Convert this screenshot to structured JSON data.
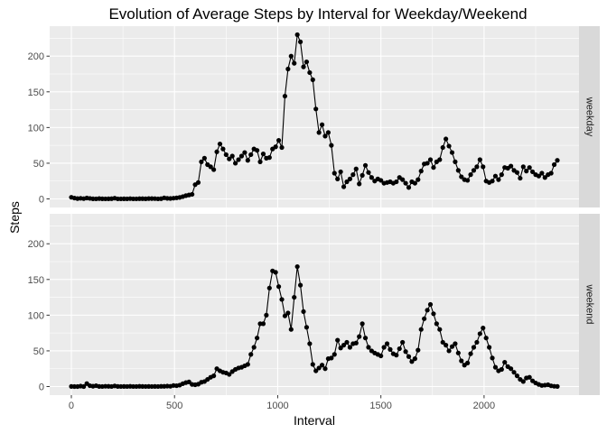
{
  "chart_data": {
    "type": "line",
    "title": "Evolution of Average Steps by Interval for Weekday/Weekend",
    "xlabel": "Interval",
    "ylabel": "Steps",
    "xlim": [
      -105,
      2460
    ],
    "ylim": [
      -12,
      242
    ],
    "x_ticks": [
      0,
      500,
      1000,
      1500,
      2000
    ],
    "y_ticks": [
      0,
      50,
      100,
      150,
      200
    ],
    "grid": true,
    "markers": true,
    "colors": {
      "panel": "#ebebeb",
      "grid": "#ffffff",
      "strip": "#d9d9d9",
      "line": "#000000"
    },
    "panels": [
      {
        "label": "weekday",
        "points": [
          [
            0,
            2.3
          ],
          [
            15,
            1.2
          ],
          [
            30,
            0.5
          ],
          [
            45,
            0.9
          ],
          [
            60,
            0.4
          ],
          [
            75,
            1.3
          ],
          [
            90,
            0.7
          ],
          [
            105,
            0.2
          ],
          [
            120,
            0.1
          ],
          [
            135,
            0.5
          ],
          [
            150,
            0.2
          ],
          [
            165,
            0.1
          ],
          [
            180,
            0.2
          ],
          [
            195,
            0.3
          ],
          [
            210,
            1.0
          ],
          [
            225,
            0.1
          ],
          [
            240,
            0.1
          ],
          [
            255,
            0.2
          ],
          [
            270,
            0.1
          ],
          [
            285,
            0.4
          ],
          [
            300,
            0.1
          ],
          [
            315,
            0.1
          ],
          [
            330,
            0.3
          ],
          [
            345,
            0.3
          ],
          [
            360,
            0.2
          ],
          [
            375,
            0.5
          ],
          [
            390,
            0.5
          ],
          [
            405,
            0.4
          ],
          [
            420,
            0.1
          ],
          [
            435,
            0.3
          ],
          [
            450,
            1.5
          ],
          [
            465,
            0.8
          ],
          [
            480,
            0.6
          ],
          [
            495,
            1.0
          ],
          [
            510,
            1.5
          ],
          [
            525,
            2.1
          ],
          [
            540,
            3.2
          ],
          [
            555,
            4.6
          ],
          [
            570,
            5.5
          ],
          [
            585,
            6.4
          ],
          [
            600,
            20.0
          ],
          [
            615,
            23.0
          ],
          [
            630,
            52.0
          ],
          [
            645,
            57.0
          ],
          [
            660,
            48.0
          ],
          [
            675,
            45.0
          ],
          [
            690,
            41.0
          ],
          [
            705,
            66.0
          ],
          [
            720,
            77.0
          ],
          [
            735,
            70.0
          ],
          [
            750,
            62.0
          ],
          [
            765,
            56.0
          ],
          [
            780,
            60.0
          ],
          [
            795,
            50.0
          ],
          [
            810,
            55.0
          ],
          [
            825,
            60.0
          ],
          [
            840,
            65.0
          ],
          [
            855,
            54.0
          ],
          [
            870,
            62.0
          ],
          [
            885,
            70.0
          ],
          [
            900,
            68.0
          ],
          [
            915,
            52.0
          ],
          [
            930,
            63.0
          ],
          [
            945,
            57.0
          ],
          [
            960,
            58.0
          ],
          [
            975,
            70.0
          ],
          [
            990,
            73.0
          ],
          [
            1005,
            82.0
          ],
          [
            1020,
            72.0
          ],
          [
            1035,
            144.0
          ],
          [
            1050,
            182.0
          ],
          [
            1065,
            200.0
          ],
          [
            1080,
            190.0
          ],
          [
            1095,
            230.0
          ],
          [
            1110,
            220.0
          ],
          [
            1125,
            185.0
          ],
          [
            1140,
            192.0
          ],
          [
            1155,
            177.0
          ],
          [
            1170,
            167.0
          ],
          [
            1185,
            126.0
          ],
          [
            1200,
            93.0
          ],
          [
            1215,
            104.0
          ],
          [
            1230,
            88.0
          ],
          [
            1245,
            93.0
          ],
          [
            1260,
            75.0
          ],
          [
            1275,
            36.0
          ],
          [
            1290,
            28.0
          ],
          [
            1305,
            38.0
          ],
          [
            1320,
            17.0
          ],
          [
            1335,
            24.0
          ],
          [
            1350,
            28.0
          ],
          [
            1365,
            34.0
          ],
          [
            1380,
            42.0
          ],
          [
            1395,
            21.0
          ],
          [
            1410,
            33.0
          ],
          [
            1425,
            47.0
          ],
          [
            1440,
            37.0
          ],
          [
            1455,
            30.0
          ],
          [
            1470,
            25.0
          ],
          [
            1485,
            28.0
          ],
          [
            1500,
            26.0
          ],
          [
            1515,
            22.0
          ],
          [
            1530,
            23.0
          ],
          [
            1545,
            24.0
          ],
          [
            1560,
            22.0
          ],
          [
            1575,
            24.0
          ],
          [
            1590,
            30.0
          ],
          [
            1605,
            27.0
          ],
          [
            1620,
            22.0
          ],
          [
            1635,
            16.0
          ],
          [
            1650,
            24.0
          ],
          [
            1665,
            22.0
          ],
          [
            1680,
            27.0
          ],
          [
            1695,
            39.0
          ],
          [
            1710,
            49.0
          ],
          [
            1725,
            50.0
          ],
          [
            1740,
            55.0
          ],
          [
            1755,
            44.0
          ],
          [
            1770,
            52.0
          ],
          [
            1785,
            55.0
          ],
          [
            1800,
            72.0
          ],
          [
            1815,
            84.0
          ],
          [
            1830,
            74.0
          ],
          [
            1845,
            65.0
          ],
          [
            1860,
            52.0
          ],
          [
            1875,
            40.0
          ],
          [
            1890,
            31.0
          ],
          [
            1905,
            27.0
          ],
          [
            1920,
            26.0
          ],
          [
            1935,
            34.0
          ],
          [
            1950,
            40.0
          ],
          [
            1965,
            45.0
          ],
          [
            1980,
            55.0
          ],
          [
            1995,
            45.0
          ],
          [
            2010,
            25.0
          ],
          [
            2025,
            23.0
          ],
          [
            2040,
            25.0
          ],
          [
            2055,
            32.0
          ],
          [
            2070,
            27.0
          ],
          [
            2085,
            34.0
          ],
          [
            2100,
            44.0
          ],
          [
            2115,
            43.0
          ],
          [
            2130,
            46.0
          ],
          [
            2145,
            40.0
          ],
          [
            2160,
            37.0
          ],
          [
            2175,
            29.0
          ],
          [
            2190,
            45.0
          ],
          [
            2205,
            39.0
          ],
          [
            2220,
            44.0
          ],
          [
            2235,
            38.0
          ],
          [
            2250,
            34.0
          ],
          [
            2265,
            32.0
          ],
          [
            2280,
            36.0
          ],
          [
            2295,
            30.0
          ],
          [
            2310,
            34.0
          ],
          [
            2325,
            36.0
          ],
          [
            2340,
            48.0
          ],
          [
            2355,
            54.0
          ]
        ]
      },
      {
        "label": "weekend",
        "points": [
          [
            0,
            0.2
          ],
          [
            15,
            0.0
          ],
          [
            30,
            0.0
          ],
          [
            45,
            0.6
          ],
          [
            60,
            0.0
          ],
          [
            75,
            4.1
          ],
          [
            90,
            1.2
          ],
          [
            105,
            0.5
          ],
          [
            120,
            1.2
          ],
          [
            135,
            0.2
          ],
          [
            150,
            0.1
          ],
          [
            165,
            0.4
          ],
          [
            180,
            0.3
          ],
          [
            195,
            0.1
          ],
          [
            210,
            0.9
          ],
          [
            225,
            0.2
          ],
          [
            240,
            0.1
          ],
          [
            255,
            0.2
          ],
          [
            270,
            0.1
          ],
          [
            285,
            0.3
          ],
          [
            300,
            0.1
          ],
          [
            315,
            0.1
          ],
          [
            330,
            0.3
          ],
          [
            345,
            0.2
          ],
          [
            360,
            0.1
          ],
          [
            375,
            0.2
          ],
          [
            390,
            0.1
          ],
          [
            405,
            0.2
          ],
          [
            420,
            0.1
          ],
          [
            435,
            0.3
          ],
          [
            450,
            0.3
          ],
          [
            465,
            0.6
          ],
          [
            480,
            0.4
          ],
          [
            495,
            1.5
          ],
          [
            510,
            1.2
          ],
          [
            525,
            2.0
          ],
          [
            540,
            4.0
          ],
          [
            555,
            5.5
          ],
          [
            570,
            6.5
          ],
          [
            585,
            3.0
          ],
          [
            600,
            2.5
          ],
          [
            615,
            3.3
          ],
          [
            630,
            6.0
          ],
          [
            645,
            7.0
          ],
          [
            660,
            10.0
          ],
          [
            675,
            13.0
          ],
          [
            690,
            15.0
          ],
          [
            705,
            25.0
          ],
          [
            720,
            22.0
          ],
          [
            735,
            20.0
          ],
          [
            750,
            19.0
          ],
          [
            765,
            17.0
          ],
          [
            780,
            21.0
          ],
          [
            795,
            24.0
          ],
          [
            810,
            26.0
          ],
          [
            825,
            27.0
          ],
          [
            840,
            29.0
          ],
          [
            855,
            31.0
          ],
          [
            870,
            45.0
          ],
          [
            885,
            55.0
          ],
          [
            900,
            68.0
          ],
          [
            915,
            88.0
          ],
          [
            930,
            88.0
          ],
          [
            945,
            100.0
          ],
          [
            960,
            138.0
          ],
          [
            975,
            162.0
          ],
          [
            990,
            160.0
          ],
          [
            1005,
            140.0
          ],
          [
            1020,
            122.0
          ],
          [
            1035,
            99.0
          ],
          [
            1050,
            103.0
          ],
          [
            1065,
            80.0
          ],
          [
            1080,
            125.0
          ],
          [
            1095,
            168.0
          ],
          [
            1110,
            142.0
          ],
          [
            1125,
            105.0
          ],
          [
            1140,
            83.0
          ],
          [
            1155,
            60.0
          ],
          [
            1170,
            31.0
          ],
          [
            1185,
            22.0
          ],
          [
            1200,
            26.0
          ],
          [
            1215,
            30.0
          ],
          [
            1230,
            25.0
          ],
          [
            1245,
            39.0
          ],
          [
            1260,
            40.0
          ],
          [
            1275,
            45.0
          ],
          [
            1290,
            65.0
          ],
          [
            1305,
            54.0
          ],
          [
            1320,
            58.0
          ],
          [
            1335,
            62.0
          ],
          [
            1350,
            55.0
          ],
          [
            1365,
            60.0
          ],
          [
            1380,
            61.0
          ],
          [
            1395,
            70.0
          ],
          [
            1410,
            88.0
          ],
          [
            1425,
            68.0
          ],
          [
            1440,
            55.0
          ],
          [
            1455,
            50.0
          ],
          [
            1470,
            47.0
          ],
          [
            1485,
            45.0
          ],
          [
            1500,
            43.0
          ],
          [
            1515,
            55.0
          ],
          [
            1530,
            60.0
          ],
          [
            1545,
            52.0
          ],
          [
            1560,
            46.0
          ],
          [
            1575,
            44.0
          ],
          [
            1590,
            53.0
          ],
          [
            1605,
            62.0
          ],
          [
            1620,
            49.0
          ],
          [
            1635,
            42.0
          ],
          [
            1650,
            35.0
          ],
          [
            1665,
            39.0
          ],
          [
            1680,
            51.0
          ],
          [
            1695,
            80.0
          ],
          [
            1710,
            95.0
          ],
          [
            1725,
            107.0
          ],
          [
            1740,
            115.0
          ],
          [
            1755,
            102.0
          ],
          [
            1770,
            88.0
          ],
          [
            1785,
            80.0
          ],
          [
            1800,
            62.0
          ],
          [
            1815,
            58.0
          ],
          [
            1830,
            50.0
          ],
          [
            1845,
            56.0
          ],
          [
            1860,
            60.0
          ],
          [
            1875,
            47.0
          ],
          [
            1890,
            36.0
          ],
          [
            1905,
            30.0
          ],
          [
            1920,
            33.0
          ],
          [
            1935,
            46.0
          ],
          [
            1950,
            55.0
          ],
          [
            1965,
            62.0
          ],
          [
            1980,
            74.0
          ],
          [
            1995,
            82.0
          ],
          [
            2010,
            68.0
          ],
          [
            2025,
            55.0
          ],
          [
            2040,
            40.0
          ],
          [
            2055,
            27.0
          ],
          [
            2070,
            22.0
          ],
          [
            2085,
            24.0
          ],
          [
            2100,
            34.0
          ],
          [
            2115,
            28.0
          ],
          [
            2130,
            25.0
          ],
          [
            2145,
            20.0
          ],
          [
            2160,
            15.0
          ],
          [
            2175,
            10.0
          ],
          [
            2190,
            7.0
          ],
          [
            2205,
            12.0
          ],
          [
            2220,
            13.0
          ],
          [
            2235,
            8.0
          ],
          [
            2250,
            5.0
          ],
          [
            2265,
            3.0
          ],
          [
            2280,
            1.5
          ],
          [
            2295,
            2.0
          ],
          [
            2310,
            2.5
          ],
          [
            2325,
            1.0
          ],
          [
            2340,
            0.4
          ],
          [
            2355,
            0.2
          ]
        ]
      }
    ]
  }
}
